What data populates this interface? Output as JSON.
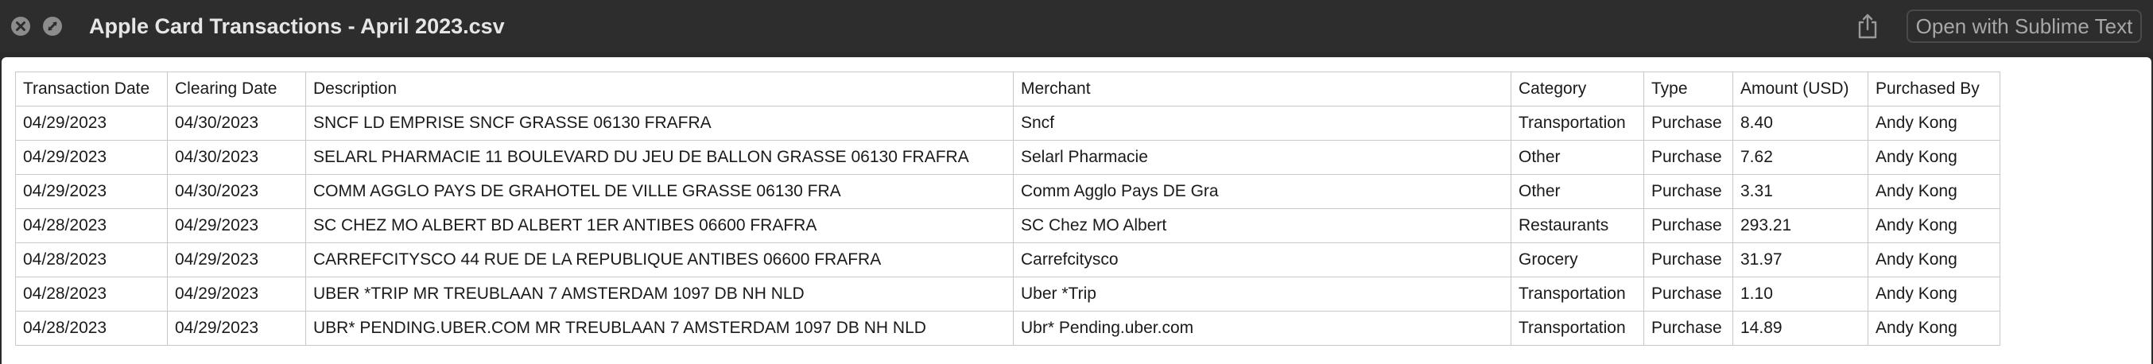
{
  "window": {
    "title": "Apple Card Transactions - April 2023.csv",
    "open_with_label": "Open with Sublime Text",
    "icons": {
      "close": "close-icon",
      "fullscreen": "fullscreen-icon",
      "share": "share-icon"
    }
  },
  "table": {
    "columns": [
      "Transaction Date",
      "Clearing Date",
      "Description",
      "Merchant",
      "Category",
      "Type",
      "Amount (USD)",
      "Purchased By"
    ],
    "rows": [
      [
        "04/29/2023",
        "04/30/2023",
        "SNCF LD EMPRISE SNCF GRASSE 06130 FRAFRA",
        "Sncf",
        "Transportation",
        "Purchase",
        "8.40",
        "Andy Kong"
      ],
      [
        "04/29/2023",
        "04/30/2023",
        "SELARL PHARMACIE 11 BOULEVARD DU JEU DE BALLON GRASSE 06130 FRAFRA",
        "Selarl Pharmacie",
        "Other",
        "Purchase",
        "7.62",
        "Andy Kong"
      ],
      [
        "04/29/2023",
        "04/30/2023",
        "COMM AGGLO PAYS DE GRAHOTEL DE VILLE GRASSE 06130 FRA",
        "Comm Agglo Pays DE Gra",
        "Other",
        "Purchase",
        "3.31",
        "Andy Kong"
      ],
      [
        "04/28/2023",
        "04/29/2023",
        "SC CHEZ MO ALBERT BD ALBERT 1ER ANTIBES 06600 FRAFRA",
        "SC Chez MO Albert",
        "Restaurants",
        "Purchase",
        "293.21",
        "Andy Kong"
      ],
      [
        "04/28/2023",
        "04/29/2023",
        "CARREFCITYSCO 44 RUE DE LA REPUBLIQUE ANTIBES 06600 FRAFRA",
        "Carrefcitysco",
        "Grocery",
        "Purchase",
        "31.97",
        "Andy Kong"
      ],
      [
        "04/28/2023",
        "04/29/2023",
        "UBER *TRIP MR TREUBLAAN 7 AMSTERDAM 1097 DB NH NLD",
        "Uber *Trip",
        "Transportation",
        "Purchase",
        "1.10",
        "Andy Kong"
      ],
      [
        "04/28/2023",
        "04/29/2023",
        "UBR* PENDING.UBER.COM MR TREUBLAAN 7 AMSTERDAM 1097 DB NH NLD",
        "Ubr* Pending.uber.com",
        "Transportation",
        "Purchase",
        "14.89",
        "Andy Kong"
      ]
    ]
  }
}
